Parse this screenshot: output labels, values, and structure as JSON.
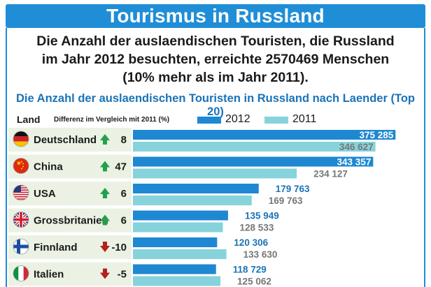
{
  "title": "Tourismus in Russland",
  "summary": [
    "Die Anzahl der auslaendischen Touristen, die Russland",
    "im Jahr 2012 besuchten, erreichte  2570469 Menschen",
    "(10% mehr als im Jahr 2011)."
  ],
  "chart_data": {
    "type": "bar",
    "orientation": "horizontal",
    "title": "Die Anzahl der auslaendischen Touristen in Russland nach Laender (Top 20)",
    "column_labels": {
      "country": "Land",
      "difference": "Differenz im Vergleich mit 2011 (%)"
    },
    "categories": [
      "Deutschland",
      "China",
      "USA",
      "Grossbritanien",
      "Finnland",
      "Italien"
    ],
    "series": [
      {
        "name": "2012",
        "color": "#1e88d2",
        "values": [
          375285,
          343357,
          179763,
          135949,
          120306,
          118729
        ],
        "value_labels": [
          "375 285",
          "343 357",
          "179 763",
          "135 949",
          "120 306",
          "118 729"
        ]
      },
      {
        "name": "2011",
        "color": "#86d3dc",
        "values": [
          346627,
          234127,
          169763,
          128533,
          133630,
          125062
        ],
        "value_labels": [
          "346 627",
          "234 127",
          "169 763",
          "128 533",
          "133 630",
          "125 062"
        ]
      }
    ],
    "difference": [
      {
        "value": "8",
        "direction": "up"
      },
      {
        "value": "47",
        "direction": "up"
      },
      {
        "value": "6",
        "direction": "up"
      },
      {
        "value": "6",
        "direction": "up"
      },
      {
        "value": "-10",
        "direction": "down"
      },
      {
        "value": "-5",
        "direction": "down"
      }
    ],
    "flags": [
      "germany-flag",
      "china-flag",
      "usa-flag",
      "uk-flag",
      "finland-flag",
      "italy-flag"
    ],
    "xlim": [
      0,
      400000
    ],
    "legend_position": "top"
  },
  "colors": {
    "accent": "#1f8ed6",
    "up_arrow": "#23a04a",
    "down_arrow": "#b3211d",
    "row_shade": "#ebf2e4"
  }
}
